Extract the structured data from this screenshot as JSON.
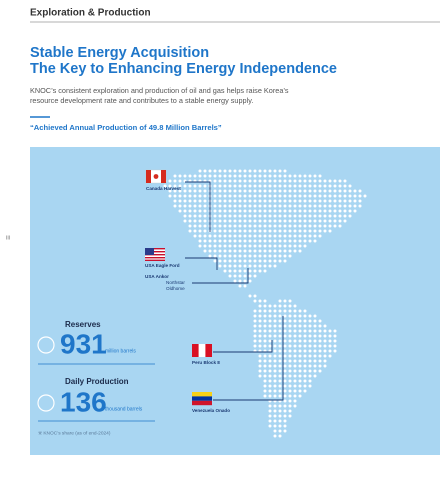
{
  "header": {
    "section": "Exploration & Production",
    "side_mark": "III"
  },
  "title": {
    "line1": "Stable Energy Acquisition",
    "line2": "The Key to Enhancing Energy Independence"
  },
  "body": {
    "line1": "KNOC’s consistent exploration and production of oil and gas helps raise Korea’s",
    "line2": "resource development rate and contributes to a stable energy supply."
  },
  "quote": "“Achieved Annual Production of 49.8 Million Barrels”",
  "map": {
    "sites": [
      {
        "label": [
          "Canada Harvest"
        ]
      },
      {
        "label": [
          "USA Eagle Ford"
        ]
      },
      {
        "label": [
          "USA Ankor",
          "Northstar",
          "Oldhome"
        ]
      },
      {
        "label": [
          "Peru Block 8"
        ]
      },
      {
        "label": [
          "Venezuela Onado"
        ]
      }
    ]
  },
  "stats": [
    {
      "title": "Reserves",
      "value": "931",
      "unit": "million barrels"
    },
    {
      "title": "Daily Production",
      "value": "136",
      "unit": "thousand barrels"
    }
  ],
  "note": "※ KNOC’s share (as of end-2024)"
}
